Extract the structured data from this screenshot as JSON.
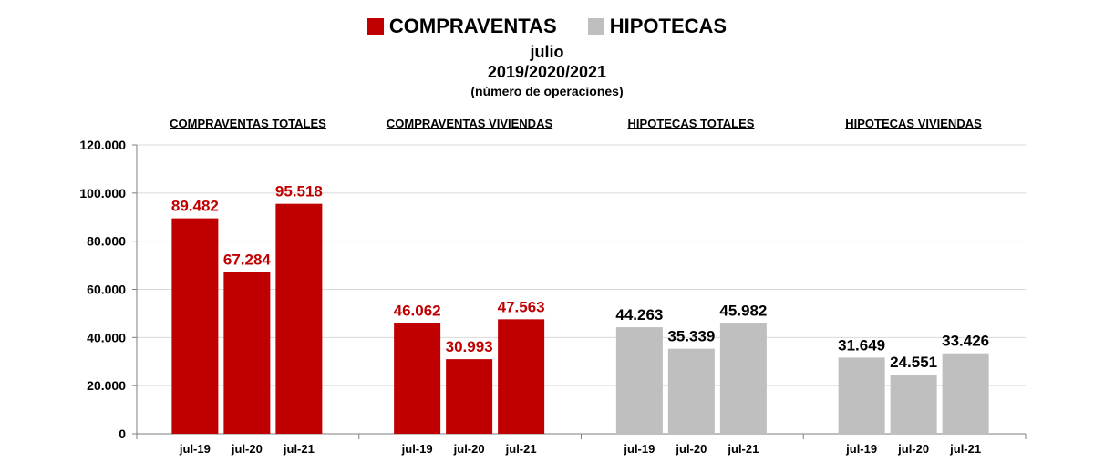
{
  "legend": {
    "items": [
      {
        "label": "COMPRAVENTAS",
        "color": "#c00000"
      },
      {
        "label": "HIPOTECAS",
        "color": "#bfbfbf"
      }
    ]
  },
  "titles": {
    "line1": "julio",
    "line2": "2019/2020/2021",
    "line3": "(número de operaciones)"
  },
  "chart_data": {
    "type": "bar",
    "ylim": [
      0,
      120000
    ],
    "y_ticks": [
      "0",
      "20.000",
      "40.000",
      "60.000",
      "80.000",
      "100.000",
      "120.000"
    ],
    "grid": true,
    "legend_position": "top-center",
    "groups": [
      {
        "title": "COMPRAVENTAS TOTALES",
        "series": "COMPRAVENTAS",
        "color": "#c00000",
        "label_color": "#c00000",
        "categories": [
          "jul-19",
          "jul-20",
          "jul-21"
        ],
        "values": [
          89482,
          67284,
          95518
        ],
        "labels": [
          "89.482",
          "67.284",
          "95.518"
        ]
      },
      {
        "title": "COMPRAVENTAS VIVIENDAS",
        "series": "COMPRAVENTAS",
        "color": "#c00000",
        "label_color": "#c00000",
        "categories": [
          "jul-19",
          "jul-20",
          "jul-21"
        ],
        "values": [
          46062,
          30993,
          47563
        ],
        "labels": [
          "46.062",
          "30.993",
          "47.563"
        ]
      },
      {
        "title": "HIPOTECAS TOTALES",
        "series": "HIPOTECAS",
        "color": "#bfbfbf",
        "label_color": "#000000",
        "categories": [
          "jul-19",
          "jul-20",
          "jul-21"
        ],
        "values": [
          44263,
          35339,
          45982
        ],
        "labels": [
          "44.263",
          "35.339",
          "45.982"
        ]
      },
      {
        "title": "HIPOTECAS VIVIENDAS",
        "series": "HIPOTECAS",
        "color": "#bfbfbf",
        "label_color": "#000000",
        "categories": [
          "jul-19",
          "jul-20",
          "jul-21"
        ],
        "values": [
          31649,
          24551,
          33426
        ],
        "labels": [
          "31.649",
          "24.551",
          "33.426"
        ]
      }
    ]
  }
}
